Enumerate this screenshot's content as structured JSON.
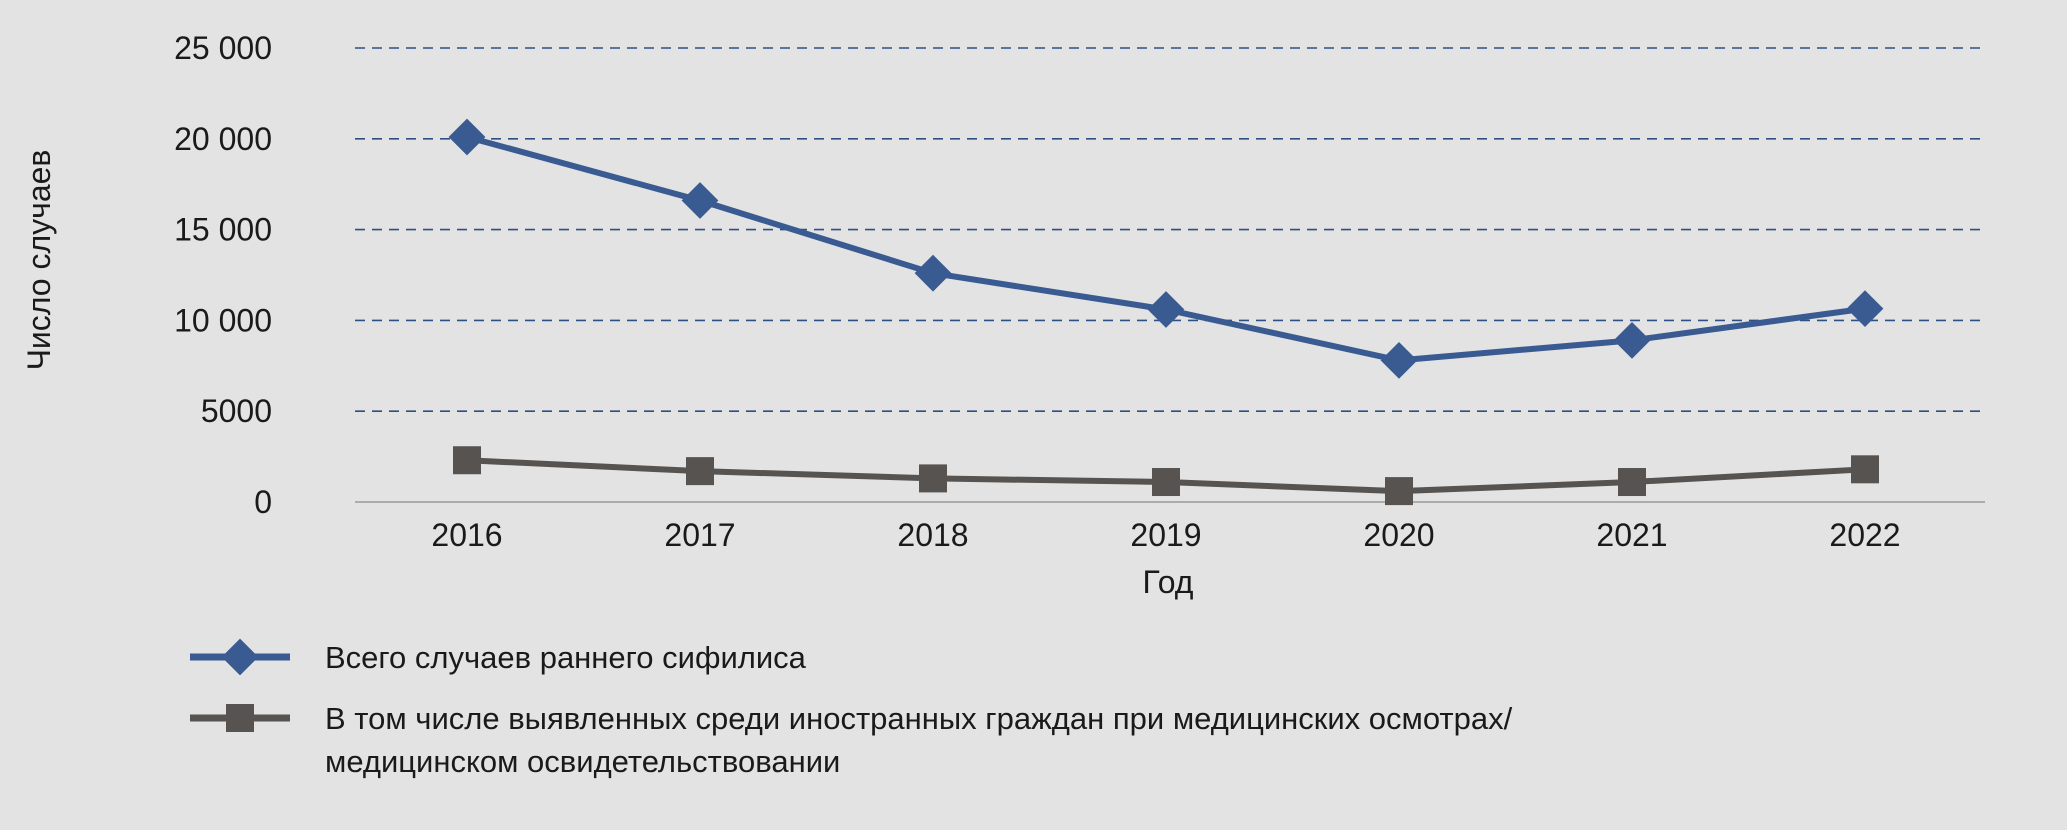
{
  "chart_data": {
    "type": "line",
    "title": "",
    "xlabel": "Год",
    "ylabel": "Число случаев",
    "categories": [
      "2016",
      "2017",
      "2018",
      "2019",
      "2020",
      "2021",
      "2022"
    ],
    "ylim": [
      0,
      25000
    ],
    "yticks": [
      0,
      5000,
      10000,
      15000,
      20000,
      25000
    ],
    "ytick_labels": [
      "0",
      "5000",
      "10 000",
      "15 000",
      "20 000",
      "25 000"
    ],
    "grid": "horizontal dashed",
    "legend_position": "bottom-left",
    "series": [
      {
        "name": "Всего случаев раннего сифилиса",
        "marker": "diamond",
        "color": "#3a5a92",
        "values": [
          20100,
          16600,
          12600,
          10600,
          7800,
          8900,
          10650
        ]
      },
      {
        "name_lines": [
          "В том числе выявленных среди иностранных граждан при медицинских осмотрах/",
          "медицинском освидетельствовании"
        ],
        "marker": "square",
        "color": "#575350",
        "values": [
          2300,
          1700,
          1300,
          1100,
          600,
          1100,
          1800
        ]
      }
    ]
  }
}
